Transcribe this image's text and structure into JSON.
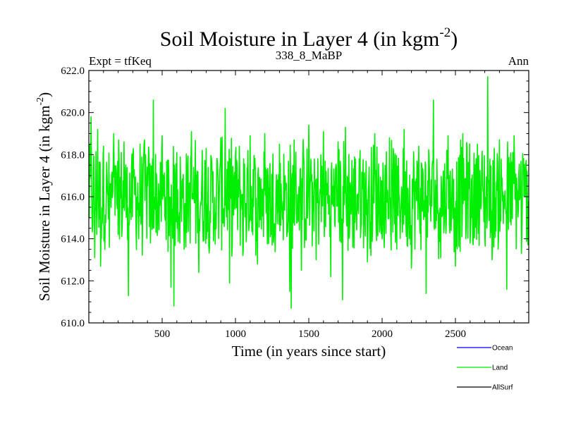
{
  "chart_data": {
    "type": "line",
    "title": "Soil Moisture in Layer 4 (in kgm",
    "title_sup": "-2",
    "title_close": ")",
    "subtitle_left": "Expt = tfKeq",
    "subtitle_center": "338_8_MaBP",
    "subtitle_right": "Ann",
    "xlabel": "Time (in years since start)",
    "ylabel": "Soil Moisture in Layer 4 (in kgm",
    "ylabel_sup": "-2",
    "ylabel_close": ")",
    "xlim": [
      0,
      3000
    ],
    "ylim": [
      610.0,
      622.0
    ],
    "x_ticks": [
      500,
      1000,
      1500,
      2000,
      2500
    ],
    "x_tick_labels": [
      "500",
      "1000",
      "1500",
      "2000",
      "2500"
    ],
    "y_ticks": [
      610,
      612,
      614,
      616,
      618,
      620,
      622
    ],
    "y_tick_labels": [
      "610.0",
      "612.0",
      "614.0",
      "616.0",
      "618.0",
      "620.0",
      "622.0"
    ],
    "series_mean": 616.0,
    "series": [
      {
        "name": "Land",
        "color": "#00ee00",
        "points": [
          [
            0,
            615.2
          ],
          [
            15,
            619.8
          ],
          [
            40,
            613.1
          ],
          [
            60,
            619.2
          ],
          [
            80,
            612.7
          ],
          [
            100,
            618.4
          ],
          [
            140,
            613.6
          ],
          [
            170,
            619.0
          ],
          [
            200,
            614.2
          ],
          [
            240,
            618.6
          ],
          [
            270,
            611.3
          ],
          [
            300,
            617.9
          ],
          [
            340,
            614.0
          ],
          [
            380,
            618.7
          ],
          [
            420,
            613.8
          ],
          [
            440,
            620.6
          ],
          [
            470,
            614.5
          ],
          [
            500,
            618.9
          ],
          [
            540,
            613.4
          ],
          [
            560,
            611.7
          ],
          [
            580,
            610.8
          ],
          [
            600,
            618.1
          ],
          [
            650,
            613.5
          ],
          [
            700,
            619.1
          ],
          [
            750,
            612.4
          ],
          [
            800,
            618.3
          ],
          [
            850,
            613.9
          ],
          [
            900,
            618.8
          ],
          [
            930,
            620.2
          ],
          [
            960,
            611.9
          ],
          [
            1000,
            618.0
          ],
          [
            1050,
            613.2
          ],
          [
            1100,
            618.9
          ],
          [
            1150,
            612.8
          ],
          [
            1200,
            619.0
          ],
          [
            1250,
            613.7
          ],
          [
            1300,
            618.5
          ],
          [
            1350,
            614.1
          ],
          [
            1370,
            611.5
          ],
          [
            1380,
            610.7
          ],
          [
            1400,
            618.7
          ],
          [
            1450,
            612.5
          ],
          [
            1500,
            619.4
          ],
          [
            1550,
            613.0
          ],
          [
            1600,
            619.1
          ],
          [
            1650,
            612.2
          ],
          [
            1700,
            618.6
          ],
          [
            1730,
            611.1
          ],
          [
            1750,
            619.3
          ],
          [
            1800,
            613.6
          ],
          [
            1850,
            618.2
          ],
          [
            1900,
            612.9
          ],
          [
            1950,
            619.0
          ],
          [
            2000,
            614.0
          ],
          [
            2050,
            618.8
          ],
          [
            2100,
            613.5
          ],
          [
            2150,
            619.2
          ],
          [
            2200,
            612.6
          ],
          [
            2250,
            618.4
          ],
          [
            2300,
            611.4
          ],
          [
            2350,
            620.6
          ],
          [
            2400,
            613.1
          ],
          [
            2450,
            618.9
          ],
          [
            2500,
            612.7
          ],
          [
            2550,
            619.0
          ],
          [
            2600,
            613.8
          ],
          [
            2650,
            618.5
          ],
          [
            2700,
            614.2
          ],
          [
            2720,
            621.7
          ],
          [
            2750,
            613.0
          ],
          [
            2800,
            618.7
          ],
          [
            2850,
            611.6
          ],
          [
            2900,
            618.9
          ],
          [
            2950,
            613.3
          ],
          [
            3000,
            615.8
          ]
        ]
      }
    ],
    "legend": [
      {
        "name": "Ocean",
        "color": "#0000ff"
      },
      {
        "name": "Land",
        "color": "#00ee00"
      },
      {
        "name": "AllSurf",
        "color": "#000000"
      }
    ],
    "legend_position": "bottom-right"
  }
}
